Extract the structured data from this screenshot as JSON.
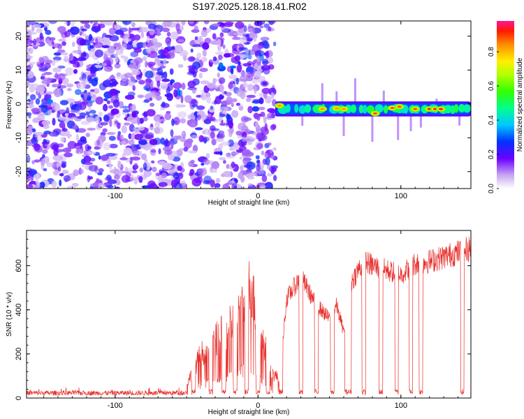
{
  "title": "S197.2025.128.18.41.R02",
  "chart_data": [
    {
      "type": "heatmap",
      "xlabel": "Height of straight line (km)",
      "ylabel": "Frequency (Hz)",
      "xlim": [
        -162,
        149
      ],
      "ylim": [
        -25,
        24.5
      ],
      "x_ticks": [
        -100,
        0,
        100
      ],
      "y_ticks": [
        -20,
        -10,
        0,
        10,
        20
      ],
      "colorbar": {
        "label": "Normalized spectral amplitude",
        "ticks": [
          0.0,
          0.2,
          0.4,
          0.6,
          0.8
        ],
        "range": [
          0,
          0.98
        ]
      },
      "left_region": {
        "x_range": [
          -162,
          12
        ],
        "y_range": [
          -25,
          24.5
        ],
        "level_range": [
          0.0,
          0.25
        ],
        "gap_x_range": [
          -52,
          -47
        ]
      },
      "band": {
        "x_range": [
          12,
          149
        ],
        "y_center": -1.5,
        "half_width": 1.8,
        "peaks": [
          {
            "x": 15,
            "y": -0.5,
            "level": 0.85
          },
          {
            "x": 45,
            "y": -1.5,
            "level": 0.85
          },
          {
            "x": 55,
            "y": -1.3,
            "level": 0.85
          },
          {
            "x": 60,
            "y": -1.5,
            "level": 0.85
          },
          {
            "x": 82,
            "y": -2.8,
            "level": 0.9
          },
          {
            "x": 94,
            "y": -1.2,
            "level": 0.9
          },
          {
            "x": 99,
            "y": -0.8,
            "level": 0.9
          },
          {
            "x": 110,
            "y": -1.5,
            "level": 0.9
          },
          {
            "x": 120,
            "y": -1.5,
            "level": 0.95
          },
          {
            "x": 124,
            "y": -1.5,
            "level": 0.95
          },
          {
            "x": 128,
            "y": -1.5,
            "level": 0.95
          }
        ],
        "spikes_x": [
          15,
          31,
          45,
          55,
          60,
          68,
          80,
          88,
          98,
          107,
          114,
          125,
          141
        ]
      }
    },
    {
      "type": "line",
      "xlabel": "Height of straight line (km)",
      "ylabel": "SNR (10 * v/v)",
      "xlim": [
        -162,
        149
      ],
      "ylim": [
        0,
        760
      ],
      "x_ticks": [
        -100,
        0,
        100
      ],
      "y_ticks": [
        0,
        200,
        400,
        600
      ],
      "color": "#e8302c",
      "series_profile": [
        [
          -162,
          20
        ],
        [
          -140,
          25
        ],
        [
          -120,
          20
        ],
        [
          -100,
          25
        ],
        [
          -80,
          22
        ],
        [
          -60,
          25
        ],
        [
          -50,
          60
        ],
        [
          -45,
          130
        ],
        [
          -40,
          200
        ],
        [
          -35,
          230
        ],
        [
          -30,
          260
        ],
        [
          -20,
          320
        ],
        [
          -10,
          420
        ],
        [
          -5,
          520
        ],
        [
          0,
          320
        ],
        [
          5,
          230
        ],
        [
          10,
          110
        ],
        [
          15,
          90
        ],
        [
          20,
          450
        ],
        [
          30,
          550
        ],
        [
          40,
          430
        ],
        [
          50,
          360
        ],
        [
          55,
          420
        ],
        [
          60,
          300
        ],
        [
          65,
          520
        ],
        [
          70,
          580
        ],
        [
          75,
          620
        ],
        [
          80,
          600
        ],
        [
          90,
          580
        ],
        [
          100,
          560
        ],
        [
          110,
          610
        ],
        [
          120,
          620
        ],
        [
          130,
          640
        ],
        [
          140,
          660
        ],
        [
          149,
          680
        ]
      ],
      "dropouts_x": [
        -45,
        -33,
        -24,
        -16,
        -8,
        0,
        7,
        16,
        30,
        41,
        52,
        62,
        64,
        74,
        86,
        97,
        107,
        114,
        143
      ]
    }
  ]
}
